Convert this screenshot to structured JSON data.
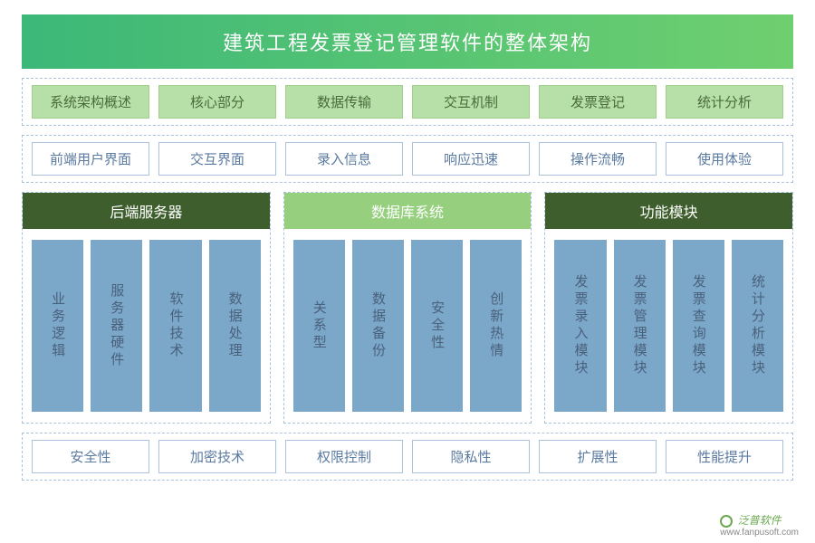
{
  "title": "建筑工程发票登记管理软件的整体架构",
  "title_gradient": {
    "from": "#3cb878",
    "to": "#6fcf6f"
  },
  "colors": {
    "dash_border": "#a9c3de",
    "pill_green_bg": "#b6e0a7",
    "pill_green_text": "#4a6a3a",
    "pill_white_text": "#5a7aa0",
    "vbar_bg": "#7ba7c9",
    "vbar_text": "#4a617c",
    "header_dark": "#3e5f2d",
    "header_light": "#96d07f"
  },
  "row1": {
    "items": [
      "系统架构概述",
      "核心部分",
      "数据传输",
      "交互机制",
      "发票登记",
      "统计分析"
    ]
  },
  "row2": {
    "items": [
      "前端用户界面",
      "交互界面",
      "录入信息",
      "响应迅速",
      "操作流畅",
      "使用体验"
    ]
  },
  "sections": [
    {
      "header": "后端服务器",
      "header_bg": "#3e5f2d",
      "items": [
        "业务逻辑",
        "服务器硬件",
        "软件技术",
        "数据处理"
      ]
    },
    {
      "header": "数据库系统",
      "header_bg": "#96d07f",
      "items": [
        "关系型",
        "数据备份",
        "安全性",
        "创新热情"
      ]
    },
    {
      "header": "功能模块",
      "header_bg": "#3e5f2d",
      "items": [
        "发票录入模块",
        "发票管理模块",
        "发票查询模块",
        "统计分析模块"
      ]
    }
  ],
  "row_bottom": {
    "items": [
      "安全性",
      "加密技术",
      "权限控制",
      "隐私性",
      "扩展性",
      "性能提升"
    ]
  },
  "footer": {
    "brand": "泛普软件",
    "url": "www.fanpusoft.com"
  }
}
